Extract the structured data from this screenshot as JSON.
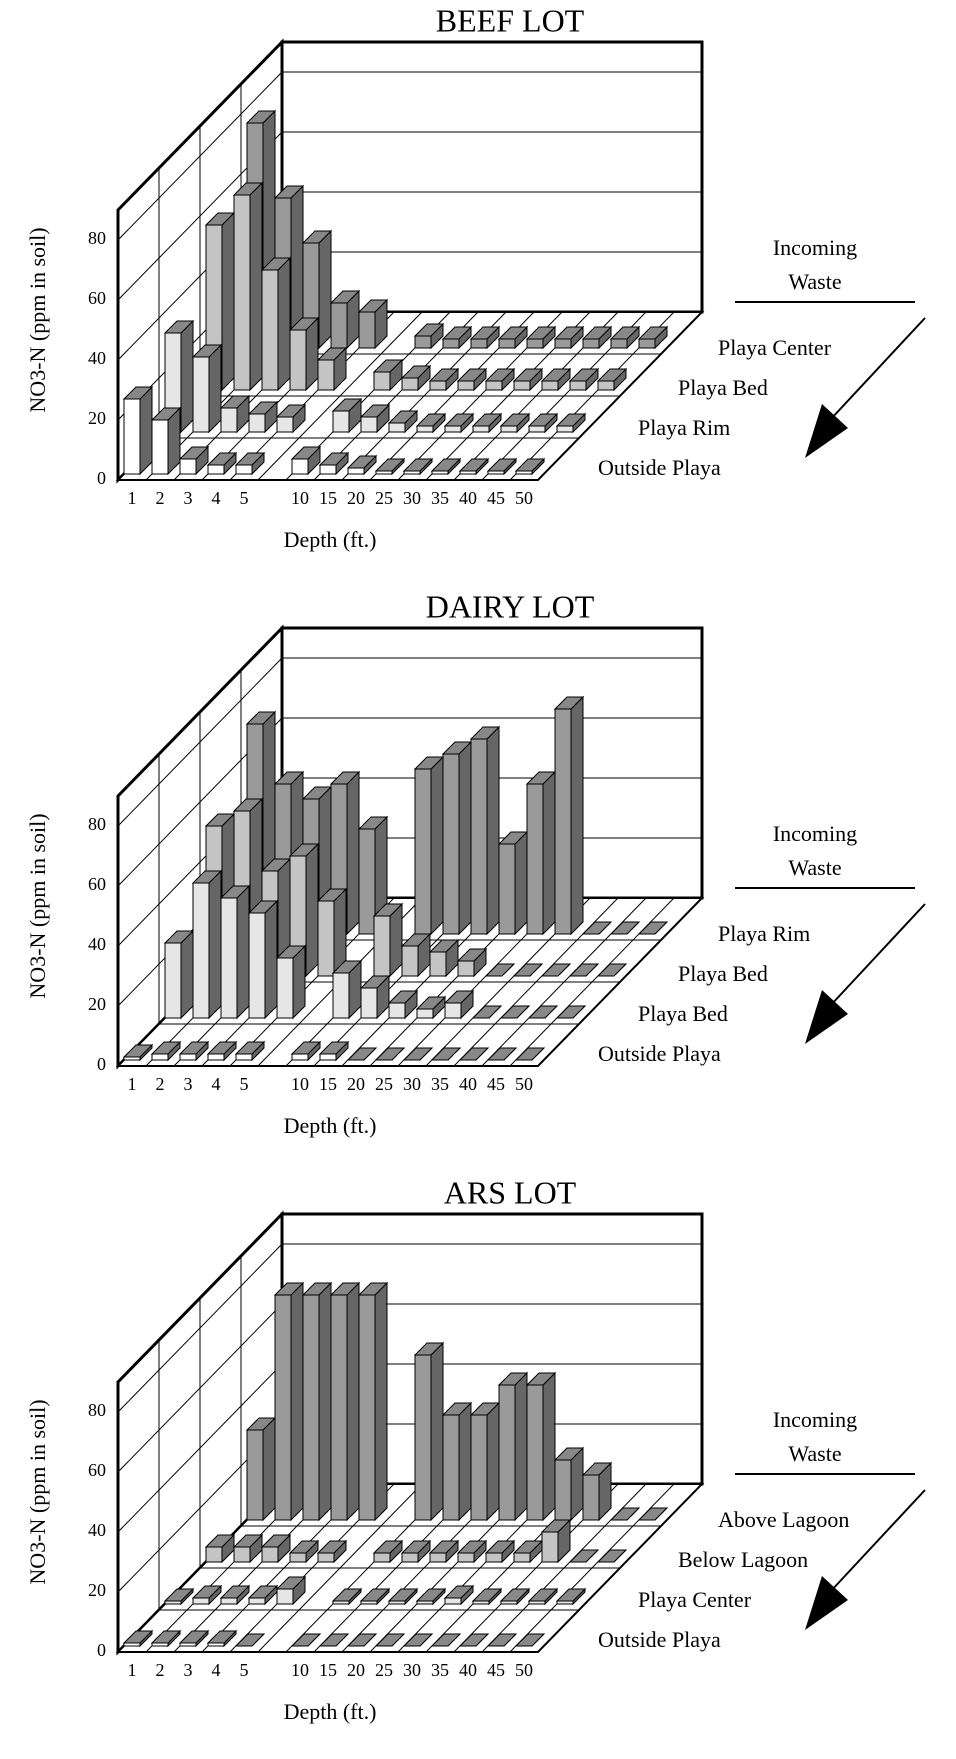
{
  "chart_data": [
    {
      "type": "bar3d",
      "title": "BEEF LOT",
      "y_label": "NO3-N (ppm in soil)",
      "x_label": "Depth (ft.)",
      "annotation": [
        "Incoming",
        "Waste"
      ],
      "categories": [
        "1",
        "2",
        "3",
        "4",
        "5",
        "10",
        "15",
        "20",
        "25",
        "30",
        "35",
        "40",
        "45",
        "50"
      ],
      "ylim": [
        0,
        90
      ],
      "yticks": [
        0,
        20,
        40,
        60,
        80
      ],
      "grid": true,
      "series": [
        {
          "name": "Playa Center",
          "color": "#9a9a9a",
          "values": [
            75,
            50,
            35,
            15,
            12,
            4,
            3,
            3,
            3,
            3,
            3,
            3,
            3,
            3
          ]
        },
        {
          "name": "Playa Bed",
          "color": "#c4c4c4",
          "values": [
            55,
            65,
            40,
            20,
            10,
            6,
            4,
            3,
            3,
            3,
            3,
            3,
            3,
            3
          ]
        },
        {
          "name": "Playa Rim",
          "color": "#e6e6e6",
          "values": [
            33,
            25,
            8,
            6,
            5,
            7,
            5,
            3,
            2,
            2,
            2,
            2,
            2,
            2
          ]
        },
        {
          "name": "Outside Playa",
          "color": "#ffffff",
          "values": [
            25,
            18,
            5,
            3,
            3,
            5,
            3,
            2,
            1,
            1,
            1,
            1,
            1,
            1
          ]
        }
      ]
    },
    {
      "type": "bar3d",
      "title": "DAIRY LOT",
      "y_label": "NO3-N (ppm in soil)",
      "x_label": "Depth (ft.)",
      "annotation": [
        "Incoming",
        "Waste"
      ],
      "categories": [
        "1",
        "2",
        "3",
        "4",
        "5",
        "10",
        "15",
        "20",
        "25",
        "30",
        "35",
        "40",
        "45",
        "50"
      ],
      "ylim": [
        0,
        90
      ],
      "yticks": [
        0,
        20,
        40,
        60,
        80
      ],
      "grid": true,
      "series": [
        {
          "name": "Playa Rim",
          "color": "#9a9a9a",
          "values": [
            70,
            50,
            45,
            50,
            35,
            55,
            60,
            65,
            30,
            50,
            75,
            0,
            0,
            0
          ]
        },
        {
          "name": "Playa Bed",
          "color": "#c4c4c4",
          "values": [
            50,
            55,
            35,
            40,
            25,
            20,
            10,
            8,
            5,
            0,
            0,
            0,
            0,
            0
          ]
        },
        {
          "name": "Playa Bed",
          "color": "#e6e6e6",
          "values": [
            25,
            45,
            40,
            35,
            20,
            15,
            10,
            5,
            3,
            5,
            0,
            0,
            0,
            0
          ]
        },
        {
          "name": "Outside Playa",
          "color": "#ffffff",
          "values": [
            1,
            2,
            2,
            2,
            2,
            2,
            2,
            0,
            0,
            0,
            0,
            0,
            0,
            0
          ]
        }
      ]
    },
    {
      "type": "bar3d",
      "title": "ARS LOT",
      "y_label": "NO3-N (ppm in soil)",
      "x_label": "Depth (ft.)",
      "annotation": [
        "Incoming",
        "Waste"
      ],
      "categories": [
        "1",
        "2",
        "3",
        "4",
        "5",
        "10",
        "15",
        "20",
        "25",
        "30",
        "35",
        "40",
        "45",
        "50"
      ],
      "ylim": [
        0,
        90
      ],
      "yticks": [
        0,
        20,
        40,
        60,
        80
      ],
      "grid": true,
      "series": [
        {
          "name": "Above Lagoon",
          "color": "#9a9a9a",
          "values": [
            30,
            75,
            75,
            75,
            75,
            55,
            35,
            35,
            45,
            45,
            20,
            15,
            0,
            0
          ]
        },
        {
          "name": "Below Lagoon",
          "color": "#c4c4c4",
          "values": [
            5,
            5,
            5,
            3,
            3,
            3,
            3,
            3,
            3,
            3,
            3,
            10,
            0,
            0
          ]
        },
        {
          "name": "Playa Center",
          "color": "#e6e6e6",
          "values": [
            1,
            2,
            2,
            2,
            5,
            1,
            1,
            1,
            1,
            2,
            1,
            1,
            1,
            1
          ]
        },
        {
          "name": "Outside Playa",
          "color": "#ffffff",
          "values": [
            1,
            1,
            1,
            1,
            0,
            0,
            0,
            0,
            0,
            0,
            0,
            0,
            0,
            0
          ]
        }
      ]
    }
  ]
}
